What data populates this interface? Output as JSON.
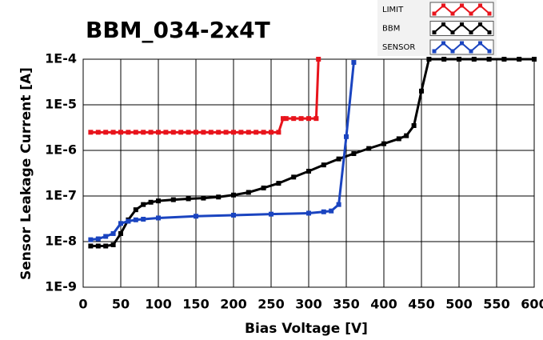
{
  "chart_data": {
    "type": "line",
    "title": "BBM_034-2x4T",
    "x_label": "Bias Voltage [V]",
    "y_label": "Sensor Leakage Current [A]",
    "log_y": true,
    "grid": true,
    "xlim": [
      0,
      600
    ],
    "xticks": [
      0,
      50,
      100,
      150,
      200,
      250,
      300,
      350,
      400,
      450,
      500,
      550,
      600
    ],
    "ylim": [
      1e-09,
      0.0001
    ],
    "yticks": [
      {
        "value": 1e-09,
        "label": "1E-9"
      },
      {
        "value": 1e-08,
        "label": "1E-8"
      },
      {
        "value": 1e-07,
        "label": "1E-7"
      },
      {
        "value": 1e-06,
        "label": "1E-6"
      },
      {
        "value": 1e-05,
        "label": "1E-5"
      },
      {
        "value": 0.0001,
        "label": "1E-4"
      }
    ],
    "legend": "top-right",
    "series": [
      {
        "name": "LIMIT",
        "color": "#e8141c",
        "x": [
          10,
          20,
          30,
          40,
          50,
          60,
          70,
          80,
          90,
          100,
          110,
          120,
          130,
          140,
          150,
          160,
          170,
          180,
          190,
          200,
          210,
          220,
          230,
          240,
          250,
          260,
          266,
          270,
          280,
          290,
          300,
          310,
          313
        ],
        "values": [
          2.5e-06,
          2.5e-06,
          2.5e-06,
          2.5e-06,
          2.5e-06,
          2.5e-06,
          2.5e-06,
          2.5e-06,
          2.5e-06,
          2.5e-06,
          2.5e-06,
          2.5e-06,
          2.5e-06,
          2.5e-06,
          2.5e-06,
          2.5e-06,
          2.5e-06,
          2.5e-06,
          2.5e-06,
          2.5e-06,
          2.5e-06,
          2.5e-06,
          2.5e-06,
          2.5e-06,
          2.5e-06,
          2.5e-06,
          5e-06,
          5e-06,
          5e-06,
          5e-06,
          5e-06,
          5e-06,
          0.0001
        ]
      },
      {
        "name": "BBM",
        "color": "#000000",
        "x": [
          10,
          20,
          30,
          40,
          50,
          60,
          70,
          80,
          90,
          100,
          120,
          140,
          160,
          180,
          200,
          220,
          240,
          260,
          280,
          300,
          320,
          340,
          360,
          380,
          400,
          420,
          430,
          440,
          450,
          460,
          480,
          500,
          520,
          540,
          560,
          580,
          600
        ],
        "values": [
          8e-09,
          8e-09,
          8e-09,
          8.5e-09,
          1.5e-08,
          3e-08,
          5e-08,
          6.5e-08,
          7.3e-08,
          7.8e-08,
          8.3e-08,
          8.7e-08,
          9e-08,
          9.5e-08,
          1.05e-07,
          1.2e-07,
          1.5e-07,
          1.9e-07,
          2.6e-07,
          3.5e-07,
          4.8e-07,
          6.5e-07,
          8.5e-07,
          1.1e-06,
          1.4e-06,
          1.8e-06,
          2.1e-06,
          3.5e-06,
          2e-05,
          0.0001,
          0.0001,
          0.0001,
          0.0001,
          0.0001,
          0.0001,
          0.0001,
          0.0001
        ]
      },
      {
        "name": "SENSOR",
        "color": "#1a44c0",
        "x": [
          10,
          20,
          30,
          40,
          50,
          60,
          70,
          80,
          100,
          150,
          200,
          250,
          300,
          320,
          330,
          340,
          350,
          360
        ],
        "values": [
          1.1e-08,
          1.15e-08,
          1.3e-08,
          1.5e-08,
          2.5e-08,
          2.8e-08,
          3e-08,
          3.1e-08,
          3.3e-08,
          3.6e-08,
          3.8e-08,
          4e-08,
          4.2e-08,
          4.5e-08,
          4.7e-08,
          6.5e-08,
          2e-06,
          8.5e-05
        ]
      }
    ]
  }
}
